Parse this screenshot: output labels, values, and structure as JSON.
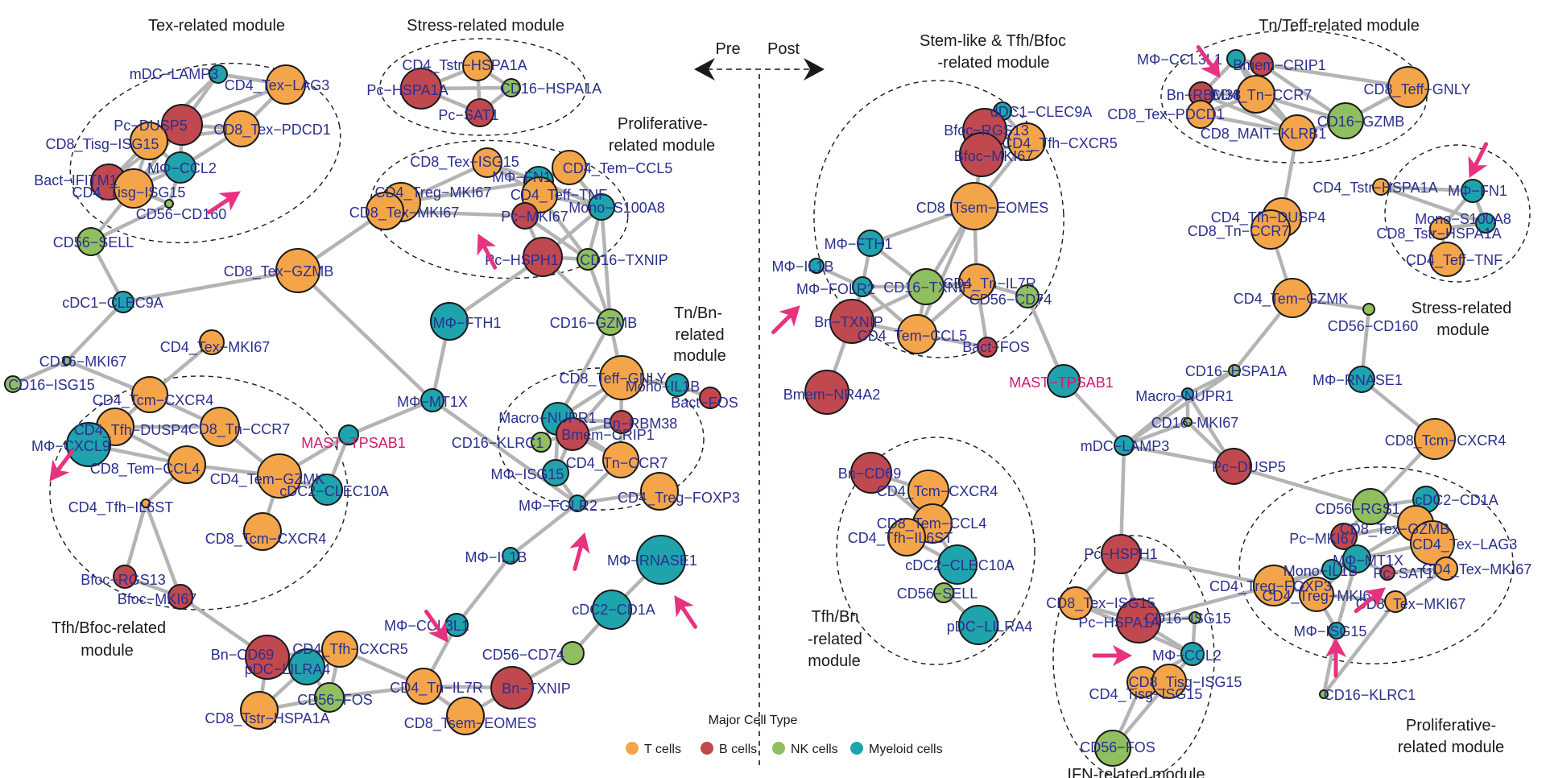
{
  "colors": {
    "T": "#f4a54a",
    "B": "#c0484f",
    "NK": "#8fbf5f",
    "My": "#1fa3ac",
    "highlight": "#d6186f",
    "arrow": "#e8327f",
    "edge": "#b4b4b4"
  },
  "time_axis": {
    "pre": "Pre",
    "post": "Post"
  },
  "legend": {
    "title": "Major Cell Type",
    "items": [
      {
        "type": "T",
        "label": "T cells"
      },
      {
        "type": "B",
        "label": "B cells"
      },
      {
        "type": "NK",
        "label": "NK cells"
      },
      {
        "type": "My",
        "label": "Myeloid cells"
      }
    ]
  },
  "modules": [
    {
      "id": "pre-tex",
      "lines": [
        "Tex-related module"
      ]
    },
    {
      "id": "pre-stress",
      "lines": [
        "Stress-related module"
      ]
    },
    {
      "id": "pre-prolif",
      "lines": [
        "Proliferative-",
        "related module"
      ]
    },
    {
      "id": "pre-tnbn",
      "lines": [
        "Tn/Bn-",
        "related",
        "module"
      ]
    },
    {
      "id": "pre-tfh",
      "lines": [
        "Tfh/Bfoc-related",
        "module"
      ]
    },
    {
      "id": "post-stem",
      "lines": [
        "Stem-like & Tfh/Bfoc",
        "-related module"
      ]
    },
    {
      "id": "post-tn",
      "lines": [
        "Tn/Teff-related module"
      ]
    },
    {
      "id": "post-stress",
      "lines": [
        "Stress-related",
        "module"
      ]
    },
    {
      "id": "post-tfhbn",
      "lines": [
        "Tfh/Bn",
        "-related",
        "module"
      ]
    },
    {
      "id": "post-prolif",
      "lines": [
        "Proliferative-",
        "related module"
      ]
    },
    {
      "id": "post-ifn",
      "lines": [
        "IFN-related module"
      ]
    }
  ],
  "nodes": [
    {
      "id": "a1",
      "label": "mDC−LAMP3",
      "type": "My"
    },
    {
      "id": "a2",
      "label": "CD4_Tex−LAG3",
      "type": "T"
    },
    {
      "id": "a3",
      "label": "Pc−DUSP5",
      "type": "B"
    },
    {
      "id": "a4",
      "label": "CD8_Tex−PDCD1",
      "type": "T"
    },
    {
      "id": "a5",
      "label": "CD8_Tisg−ISG15",
      "type": "T"
    },
    {
      "id": "a6",
      "label": "MΦ−CCL2",
      "type": "My"
    },
    {
      "id": "a7",
      "label": "Bact−IFITM1",
      "type": "B"
    },
    {
      "id": "a8",
      "label": "CD4_Tisg−ISG15",
      "type": "T"
    },
    {
      "id": "a9",
      "label": "CD56−CD160",
      "type": "NK"
    },
    {
      "id": "a10",
      "label": "CD56−SELL",
      "type": "NK"
    },
    {
      "id": "a11",
      "label": "cDC1−CLEC9A",
      "type": "My"
    },
    {
      "id": "a12",
      "label": "CD16−MKI67",
      "type": "NK"
    },
    {
      "id": "a13",
      "label": "CD16−ISG15",
      "type": "NK"
    },
    {
      "id": "a14",
      "label": "CD4_Tcm−CXCR4",
      "type": "T"
    },
    {
      "id": "a15",
      "label": "CD4_Tex−MKI67",
      "type": "T"
    },
    {
      "id": "a16",
      "label": "CD4_Tfh−DUSP4",
      "type": "T"
    },
    {
      "id": "a17",
      "label": "CD8_Tn−CCR7",
      "type": "T"
    },
    {
      "id": "a18",
      "label": "MΦ−CXCL9",
      "type": "My"
    },
    {
      "id": "a19",
      "label": "CD8_Tem−CCL4",
      "type": "T"
    },
    {
      "id": "a20",
      "label": "CD4_Tem−GZMK",
      "type": "T"
    },
    {
      "id": "a21",
      "label": "cDC2−CLEC10A",
      "type": "My"
    },
    {
      "id": "a22",
      "label": "CD4_Tfh−IL6ST",
      "type": "T"
    },
    {
      "id": "a23",
      "label": "CD8_Tcm−CXCR4",
      "type": "T"
    },
    {
      "id": "a24",
      "label": "Bfoc−RGS13",
      "type": "B"
    },
    {
      "id": "a25",
      "label": "Bfoc−MKI67",
      "type": "B"
    },
    {
      "id": "a26",
      "label": "MAST−TPSAB1",
      "type": "My",
      "highlight": true
    },
    {
      "id": "a27",
      "label": "CD8_Tex−GZMB",
      "type": "T"
    },
    {
      "id": "a28",
      "label": "MΦ−MT1X",
      "type": "My"
    },
    {
      "id": "a29",
      "label": "MΦ−FTH1",
      "type": "My"
    },
    {
      "id": "a30",
      "label": "CD4_Tstr−HSPA1A",
      "type": "T"
    },
    {
      "id": "a31",
      "label": "Pc−HSPA1A",
      "type": "B"
    },
    {
      "id": "a32",
      "label": "CD16−HSPA1A",
      "type": "NK"
    },
    {
      "id": "a33",
      "label": "Pc−SAT1",
      "type": "B"
    },
    {
      "id": "a34",
      "label": "CD8_Tex−ISG15",
      "type": "T"
    },
    {
      "id": "a35",
      "label": "MΦ−FN1",
      "type": "My"
    },
    {
      "id": "a36",
      "label": "CD4_Tem−CCL5",
      "type": "T"
    },
    {
      "id": "a37",
      "label": "CD4_Treg−MKI67",
      "type": "T"
    },
    {
      "id": "a38",
      "label": "CD4_Teff−TNF",
      "type": "T"
    },
    {
      "id": "a39",
      "label": "CD8_Tex−MKI67",
      "type": "T"
    },
    {
      "id": "a40",
      "label": "Pc−MKI67",
      "type": "B"
    },
    {
      "id": "a41",
      "label": "Mono−S100A8",
      "type": "My"
    },
    {
      "id": "a42",
      "label": "Pc−HSPH1",
      "type": "B"
    },
    {
      "id": "a43",
      "label": "CD16−TXNIP",
      "type": "NK"
    },
    {
      "id": "a44",
      "label": "CD16−GZMB",
      "type": "NK"
    },
    {
      "id": "a45",
      "label": "CD8_Teff−GNLY",
      "type": "T"
    },
    {
      "id": "a46",
      "label": "Mono−IL1B",
      "type": "My"
    },
    {
      "id": "a47",
      "label": "Bact−FOS",
      "type": "B"
    },
    {
      "id": "a48",
      "label": "Macro−NUPR1",
      "type": "My"
    },
    {
      "id": "a49",
      "label": "Bn−RBM38",
      "type": "B"
    },
    {
      "id": "a50",
      "label": "CD16−KLRC1",
      "type": "NK"
    },
    {
      "id": "a51",
      "label": "Bmem−CRIP1",
      "type": "B"
    },
    {
      "id": "a52",
      "label": "CD4_Tn−CCR7",
      "type": "T"
    },
    {
      "id": "a53",
      "label": "MΦ−ISG15",
      "type": "My"
    },
    {
      "id": "a54",
      "label": "MΦ−FOLR2",
      "type": "My"
    },
    {
      "id": "a55",
      "label": "CD4_Treg−FOXP3",
      "type": "T"
    },
    {
      "id": "a56",
      "label": "MΦ−IL1B",
      "type": "My"
    },
    {
      "id": "a57",
      "label": "MΦ−RNASE1",
      "type": "My"
    },
    {
      "id": "a58",
      "label": "cDC2−CD1A",
      "type": "My"
    },
    {
      "id": "a59",
      "label": "MΦ−CCL3L1",
      "type": "My"
    },
    {
      "id": "a60",
      "label": "CD56−CD74",
      "type": "NK"
    },
    {
      "id": "a61",
      "label": "Bn−CD69",
      "type": "B"
    },
    {
      "id": "a62",
      "label": "CD4_Tfh−CXCR5",
      "type": "T"
    },
    {
      "id": "a63",
      "label": "pDC−LILRA4",
      "type": "My"
    },
    {
      "id": "a64",
      "label": "CD56−FOS",
      "type": "NK"
    },
    {
      "id": "a65",
      "label": "CD4_Tn−IL7R",
      "type": "T"
    },
    {
      "id": "a66",
      "label": "Bn−TXNIP",
      "type": "B"
    },
    {
      "id": "a67",
      "label": "CD8_Tstr−HSPA1A",
      "type": "T"
    },
    {
      "id": "a68",
      "label": "CD8_Tsem−EOMES",
      "type": "T"
    },
    {
      "id": "b1",
      "label": "dDC1−CLEC9A",
      "type": "My"
    },
    {
      "id": "b2",
      "label": "Bfoc−RGS13",
      "type": "B"
    },
    {
      "id": "b3",
      "label": "CD4_Tfh−CXCR5",
      "type": "T"
    },
    {
      "id": "b4",
      "label": "Bfoc−MKI67",
      "type": "B"
    },
    {
      "id": "b5",
      "label": "CD8_Tsem−EOMES",
      "type": "T"
    },
    {
      "id": "b6",
      "label": "MΦ−FTH1",
      "type": "My"
    },
    {
      "id": "b7",
      "label": "MΦ−IL1B",
      "type": "My"
    },
    {
      "id": "b8",
      "label": "CD16−TXNIP",
      "type": "NK"
    },
    {
      "id": "b9",
      "label": "MΦ−FOLR2",
      "type": "My"
    },
    {
      "id": "b10",
      "label": "CD4_Tn−IL7R",
      "type": "T"
    },
    {
      "id": "b11",
      "label": "CD56−CD74",
      "type": "NK"
    },
    {
      "id": "b12",
      "label": "Bn−TXNIP",
      "type": "B"
    },
    {
      "id": "b13",
      "label": "CD4_Tem−CCL5",
      "type": "T"
    },
    {
      "id": "b14",
      "label": "Bact−FOS",
      "type": "B"
    },
    {
      "id": "b15",
      "label": "MAST−TPSAB1",
      "type": "My",
      "highlight": true
    },
    {
      "id": "b16",
      "label": "Bmem−NR4A2",
      "type": "B"
    },
    {
      "id": "b17",
      "label": "MΦ−CCL3L1",
      "type": "My"
    },
    {
      "id": "b18",
      "label": "Bmem−CRIP1",
      "type": "B"
    },
    {
      "id": "b19",
      "label": "CD8_Teff−GNLY",
      "type": "T"
    },
    {
      "id": "b20",
      "label": "Bn−RBM38",
      "type": "B"
    },
    {
      "id": "b21",
      "label": "CD4_Tn−CCR7",
      "type": "T"
    },
    {
      "id": "b22",
      "label": "CD8_Tex−PDCD1",
      "type": "T"
    },
    {
      "id": "b23",
      "label": "CD16−GZMB",
      "type": "NK"
    },
    {
      "id": "b24",
      "label": "CD8_MAIT−KLRB1",
      "type": "T"
    },
    {
      "id": "b25",
      "label": "CD4_Tstr−HSPA1A",
      "type": "T"
    },
    {
      "id": "b26",
      "label": "MΦ−FN1",
      "type": "My"
    },
    {
      "id": "b27",
      "label": "CD4_Tfh−DUSP4",
      "type": "T"
    },
    {
      "id": "b28",
      "label": "Mono−S100A8",
      "type": "My"
    },
    {
      "id": "b29",
      "label": "CD8_Tn−CCR7",
      "type": "T"
    },
    {
      "id": "b30",
      "label": "CD8_Tstr−HSPA1A",
      "type": "T"
    },
    {
      "id": "b31",
      "label": "CD4_Teff−TNF",
      "type": "T"
    },
    {
      "id": "b32",
      "label": "CD4_Tem−GZMK",
      "type": "T"
    },
    {
      "id": "b33",
      "label": "CD56−CD160",
      "type": "NK"
    },
    {
      "id": "b34",
      "label": "CD16−HSPA1A",
      "type": "NK"
    },
    {
      "id": "b35",
      "label": "MΦ−RNASE1",
      "type": "My"
    },
    {
      "id": "b36",
      "label": "Macro−NUPR1",
      "type": "My"
    },
    {
      "id": "b37",
      "label": "CD16−MKI67",
      "type": "NK"
    },
    {
      "id": "b38",
      "label": "mDC−LAMP3",
      "type": "My"
    },
    {
      "id": "b39",
      "label": "Pc−DUSP5",
      "type": "B"
    },
    {
      "id": "b40",
      "label": "CD8_Tcm−CXCR4",
      "type": "T"
    },
    {
      "id": "b41",
      "label": "Bn−CD69",
      "type": "B"
    },
    {
      "id": "b42",
      "label": "CD4_Tcm−CXCR4",
      "type": "T"
    },
    {
      "id": "b43",
      "label": "CD8_Tem−CCL4",
      "type": "T"
    },
    {
      "id": "b44",
      "label": "CD4_Tfh−IL6ST",
      "type": "T"
    },
    {
      "id": "b45",
      "label": "cDC2−CLEC10A",
      "type": "My"
    },
    {
      "id": "b46",
      "label": "CD56−SELL",
      "type": "NK"
    },
    {
      "id": "b47",
      "label": "pDC−LILRA4",
      "type": "My"
    },
    {
      "id": "b48",
      "label": "CD56−RGS1",
      "type": "NK"
    },
    {
      "id": "b49",
      "label": "cDC2−CD1A",
      "type": "My"
    },
    {
      "id": "b50",
      "label": "CD8_Tex−GZMB",
      "type": "T"
    },
    {
      "id": "b51",
      "label": "Pc−MKI67",
      "type": "B"
    },
    {
      "id": "b52",
      "label": "CD4_Tex−LAG3",
      "type": "T"
    },
    {
      "id": "b53",
      "label": "MΦ−MT1X",
      "type": "My"
    },
    {
      "id": "b54",
      "label": "Mono−IL1B",
      "type": "My"
    },
    {
      "id": "b55",
      "label": "Pc−SAT1",
      "type": "B"
    },
    {
      "id": "b56",
      "label": "CD4_Tex−MKI67",
      "type": "T"
    },
    {
      "id": "b57",
      "label": "CD4_Treg−FOXP3",
      "type": "T"
    },
    {
      "id": "b58",
      "label": "CD4_Treg−MKI67",
      "type": "T"
    },
    {
      "id": "b59",
      "label": "CD8_Tex−MKI67",
      "type": "T"
    },
    {
      "id": "b60",
      "label": "MΦ−ISG15",
      "type": "My"
    },
    {
      "id": "b61",
      "label": "Pc−HSPH1",
      "type": "B"
    },
    {
      "id": "b62",
      "label": "CD8_Tex−ISG15",
      "type": "T"
    },
    {
      "id": "b63",
      "label": "Pc−HSPA1A",
      "type": "B"
    },
    {
      "id": "b64",
      "label": "CD16−ISG15",
      "type": "NK"
    },
    {
      "id": "b65",
      "label": "MΦ−CCL2",
      "type": "My"
    },
    {
      "id": "b66",
      "label": "CD8_Tisg−ISG15",
      "type": "T"
    },
    {
      "id": "b67",
      "label": "CD4_Tisg−ISG15",
      "type": "T"
    },
    {
      "id": "b68",
      "label": "CD56−FOS",
      "type": "NK"
    },
    {
      "id": "b69",
      "label": "CD16−KLRC1",
      "type": "NK"
    }
  ]
}
